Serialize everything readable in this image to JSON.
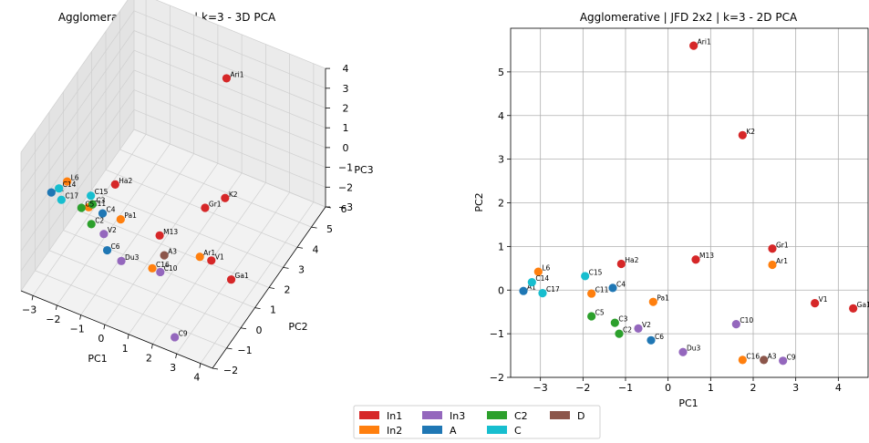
{
  "groups": [
    {
      "name": "In1",
      "color": "#d62728"
    },
    {
      "name": "In2",
      "color": "#ff7f0e"
    },
    {
      "name": "In3",
      "color": "#9467bd"
    },
    {
      "name": "A",
      "color": "#1f77b4"
    },
    {
      "name": "C2",
      "color": "#2ca02c"
    },
    {
      "name": "C",
      "color": "#17becf"
    },
    {
      "name": "D",
      "color": "#8c564b"
    }
  ],
  "chart_data": [
    {
      "type": "scatter",
      "title": "Agglomerative | JFD 2x2 | k=3 - 3D PCA",
      "xlabel": "PC1",
      "ylabel": "PC2",
      "zlabel": "PC3",
      "xlim": [
        -3.5,
        4.5
      ],
      "ylim": [
        -2,
        6
      ],
      "zlim": [
        -3,
        4
      ],
      "xticks": [
        -3,
        -2,
        -1,
        0,
        1,
        2,
        3,
        4
      ],
      "yticks": [
        -2,
        -1,
        0,
        1,
        2,
        3,
        4,
        5,
        6
      ],
      "zticks": [
        -3,
        -2,
        -1,
        0,
        1,
        2,
        3,
        4
      ],
      "grid": true,
      "points": [
        {
          "label": "Ari1",
          "group": "In1",
          "x": 0.6,
          "y": 5.6,
          "z": 2.0
        },
        {
          "label": "K2",
          "group": "In1",
          "x": 1.75,
          "y": 3.55,
          "z": -1.4
        },
        {
          "label": "Gr1",
          "group": "In1",
          "x": 2.45,
          "y": 0.95,
          "z": 1.1
        },
        {
          "label": "M13",
          "group": "In1",
          "x": 0.7,
          "y": 0.7,
          "z": -0.9
        },
        {
          "label": "Ha2",
          "group": "In1",
          "x": -1.1,
          "y": 0.6,
          "z": 0.9
        },
        {
          "label": "V1",
          "group": "In1",
          "x": 3.45,
          "y": -0.3,
          "z": 0.2
        },
        {
          "label": "Ga1",
          "group": "In1",
          "x": 4.35,
          "y": -0.42,
          "z": -0.2
        },
        {
          "label": "L6",
          "group": "In2",
          "x": -3.0,
          "y": 0.42,
          "z": 0.3
        },
        {
          "label": "C11",
          "group": "In2",
          "x": -1.8,
          "y": -0.08,
          "z": 0.1
        },
        {
          "label": "Pa1",
          "group": "In2",
          "x": -0.35,
          "y": -0.28,
          "z": 0.4
        },
        {
          "label": "Ar1",
          "group": "In2",
          "x": 2.45,
          "y": 0.58,
          "z": -1.0
        },
        {
          "label": "C16",
          "group": "In2",
          "x": 1.75,
          "y": -1.6,
          "z": 0.3
        },
        {
          "label": "V2",
          "group": "In3",
          "x": -0.7,
          "y": -0.88,
          "z": 0.1
        },
        {
          "label": "C10",
          "group": "In3",
          "x": 1.6,
          "y": -0.78,
          "z": -0.8
        },
        {
          "label": "Du3",
          "group": "In3",
          "x": 0.35,
          "y": -1.42,
          "z": -0.2
        },
        {
          "label": "C9",
          "group": "In3",
          "x": 2.7,
          "y": -1.62,
          "z": -2.7
        },
        {
          "label": "A1",
          "group": "A",
          "x": -3.4,
          "y": -0.02,
          "z": 0.0
        },
        {
          "label": "C4",
          "group": "A",
          "x": -1.3,
          "y": 0.05,
          "z": -0.1
        },
        {
          "label": "C6",
          "group": "A",
          "x": -0.4,
          "y": -1.15,
          "z": -0.3
        },
        {
          "label": "C3",
          "group": "C2",
          "x": -1.25,
          "y": -0.75,
          "z": 1.2
        },
        {
          "label": "C2",
          "group": "C2",
          "x": -1.15,
          "y": -1.0,
          "z": 0.5
        },
        {
          "label": "C5",
          "group": "C2",
          "x": -1.8,
          "y": -0.6,
          "z": 0.6
        },
        {
          "label": "C15",
          "group": "C",
          "x": -1.95,
          "y": 0.32,
          "z": 0.2
        },
        {
          "label": "C14",
          "group": "C",
          "x": -3.2,
          "y": 0.18,
          "z": 0.1
        },
        {
          "label": "C17",
          "group": "C",
          "x": -2.95,
          "y": -0.07,
          "z": -0.1
        },
        {
          "label": "A3",
          "group": "D",
          "x": 2.25,
          "y": -1.6,
          "z": 1.2
        }
      ]
    },
    {
      "type": "scatter",
      "title": "Agglomerative | JFD 2x2 | k=3 - 2D PCA",
      "xlabel": "PC1",
      "ylabel": "PC2",
      "xlim": [
        -3.7,
        4.7
      ],
      "ylim": [
        -2.0,
        6.0
      ],
      "xticks": [
        -3,
        -2,
        -1,
        0,
        1,
        2,
        3,
        4
      ],
      "yticks": [
        -2,
        -1,
        0,
        1,
        2,
        3,
        4,
        5
      ],
      "grid": true,
      "points": [
        {
          "label": "Ari1",
          "group": "In1",
          "x": 0.6,
          "y": 5.6
        },
        {
          "label": "K2",
          "group": "In1",
          "x": 1.75,
          "y": 3.55
        },
        {
          "label": "Gr1",
          "group": "In1",
          "x": 2.45,
          "y": 0.95
        },
        {
          "label": "M13",
          "group": "In1",
          "x": 0.65,
          "y": 0.7
        },
        {
          "label": "Ha2",
          "group": "In1",
          "x": -1.1,
          "y": 0.6
        },
        {
          "label": "V1",
          "group": "In1",
          "x": 3.45,
          "y": -0.3
        },
        {
          "label": "Ga1",
          "group": "In1",
          "x": 4.35,
          "y": -0.42
        },
        {
          "label": "L6",
          "group": "In2",
          "x": -3.05,
          "y": 0.42
        },
        {
          "label": "Ar1",
          "group": "In2",
          "x": 2.45,
          "y": 0.58
        },
        {
          "label": "C11",
          "group": "In2",
          "x": -1.8,
          "y": -0.08
        },
        {
          "label": "Pa1",
          "group": "In2",
          "x": -0.35,
          "y": -0.27
        },
        {
          "label": "C16",
          "group": "In2",
          "x": 1.75,
          "y": -1.6
        },
        {
          "label": "V2",
          "group": "In3",
          "x": -0.7,
          "y": -0.88
        },
        {
          "label": "C10",
          "group": "In3",
          "x": 1.6,
          "y": -0.78
        },
        {
          "label": "Du3",
          "group": "In3",
          "x": 0.35,
          "y": -1.42
        },
        {
          "label": "C9",
          "group": "In3",
          "x": 2.7,
          "y": -1.62
        },
        {
          "label": "A1",
          "group": "A",
          "x": -3.4,
          "y": -0.02
        },
        {
          "label": "C4",
          "group": "A",
          "x": -1.3,
          "y": 0.05
        },
        {
          "label": "C6",
          "group": "A",
          "x": -0.4,
          "y": -1.15
        },
        {
          "label": "C5",
          "group": "C2",
          "x": -1.8,
          "y": -0.6
        },
        {
          "label": "C3",
          "group": "C2",
          "x": -1.25,
          "y": -0.75
        },
        {
          "label": "C2",
          "group": "C2",
          "x": -1.15,
          "y": -1.0
        },
        {
          "label": "C15",
          "group": "C",
          "x": -1.95,
          "y": 0.32
        },
        {
          "label": "C14",
          "group": "C",
          "x": -3.2,
          "y": 0.18
        },
        {
          "label": "C17",
          "group": "C",
          "x": -2.95,
          "y": -0.07
        },
        {
          "label": "A3",
          "group": "D",
          "x": 2.25,
          "y": -1.6
        }
      ]
    }
  ]
}
